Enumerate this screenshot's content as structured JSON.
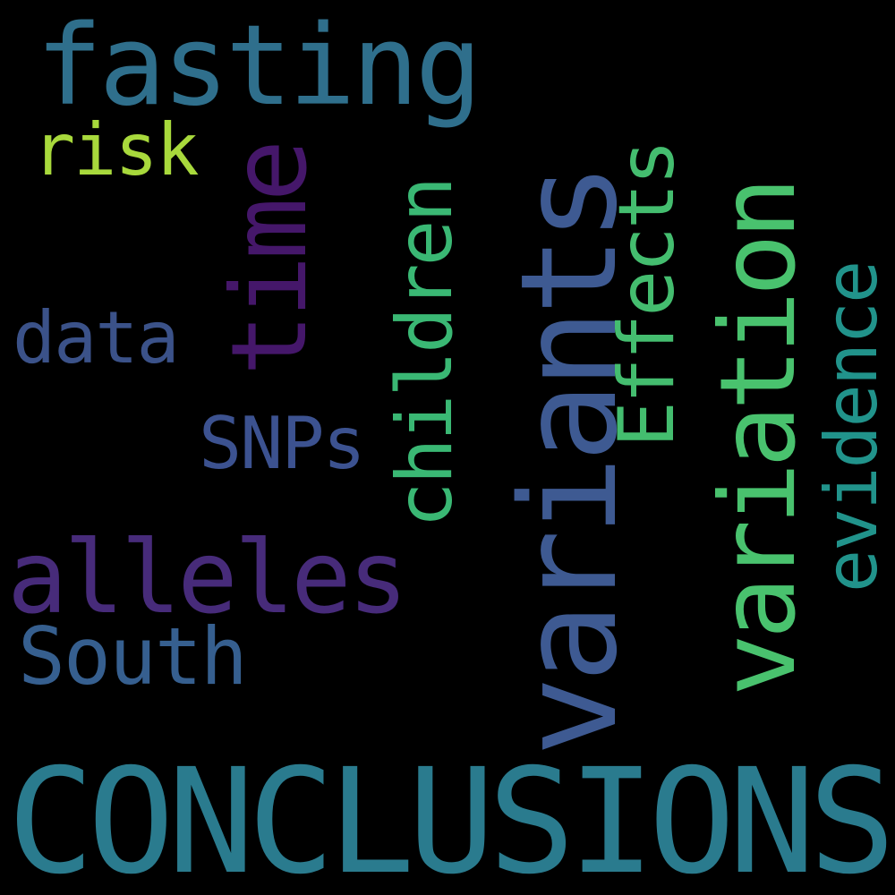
{
  "words": {
    "conclusions": {
      "text": "CONCLUSIONS",
      "color": "#2a7b8e"
    },
    "variants": {
      "text": "variants",
      "color": "#3e5a92"
    },
    "fasting": {
      "text": "fasting",
      "color": "#2f6f8c"
    },
    "alleles": {
      "text": "alleles",
      "color": "#472b7a"
    },
    "variation": {
      "text": "variation",
      "color": "#49c26e"
    },
    "time": {
      "text": "time",
      "color": "#45176a"
    },
    "children": {
      "text": "children",
      "color": "#3ab874"
    },
    "effects": {
      "text": "Effects",
      "color": "#44bd6f"
    },
    "evidence": {
      "text": "evidence",
      "color": "#21938b"
    },
    "south": {
      "text": "South",
      "color": "#365f8f"
    },
    "data": {
      "text": "data",
      "color": "#3b5289"
    },
    "snps": {
      "text": "SNPs",
      "color": "#3c5290"
    },
    "risk": {
      "text": "risk",
      "color": "#a8d93c"
    }
  }
}
